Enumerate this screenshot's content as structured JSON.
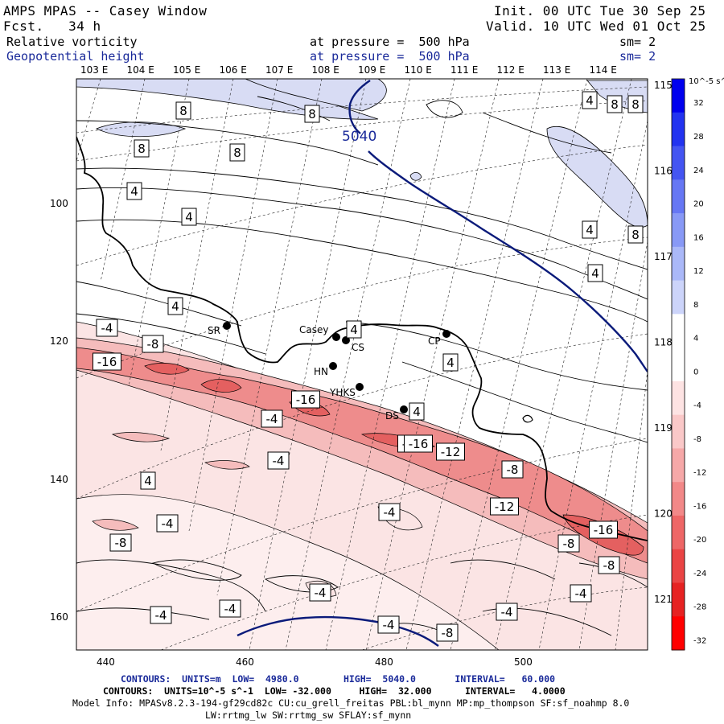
{
  "header": {
    "model": "AMPS MPAS -- Casey Window",
    "init": "Init. 00 UTC Tue 30 Sep 25",
    "fcst": "Fcst.   34 h",
    "valid": "Valid. 10 UTC Wed 01 Oct 25",
    "field1_name": "Relative vorticity",
    "field1_level": "at pressure =  500 hPa",
    "field1_sm": "sm= 2",
    "field2_name": "Geopotential height",
    "field2_level": "at pressure =  500 hPa",
    "field2_sm": "sm= 2"
  },
  "top_lon_labels": [
    "103 E",
    "104 E",
    "105 E",
    "106 E",
    "107 E",
    "108 E",
    "109 E",
    "110 E",
    "111 E",
    "112 E",
    "113 E",
    "114 E"
  ],
  "right_lat_labels": [
    "115 E",
    "116 E",
    "117 E",
    "118 E",
    "119 E",
    "120 E",
    "121 E"
  ],
  "x_ticks": [
    "440",
    "460",
    "480",
    "500"
  ],
  "y_ticks": [
    "100",
    "120",
    "140",
    "160"
  ],
  "stations": [
    {
      "name": "SR"
    },
    {
      "name": "Casey"
    },
    {
      "name": "CS"
    },
    {
      "name": "HN"
    },
    {
      "name": "YHKS"
    },
    {
      "name": "DS"
    },
    {
      "name": "CP"
    }
  ],
  "height_contour_label": "5040",
  "contour_labels": [
    "8",
    "8",
    "8",
    "8",
    "8",
    "8",
    "8",
    "4",
    "4",
    "4",
    "4",
    "4",
    "4",
    "4",
    "-4",
    "-8",
    "-16",
    "-16",
    "-16",
    "-4",
    "-16",
    "-12",
    "-4",
    "-8",
    "-4",
    "-4",
    "-8",
    "-12",
    "-16",
    "-8",
    "-8",
    "-4",
    "-4",
    "-4",
    "-4",
    "-4",
    "-8",
    "-4",
    "4",
    "4",
    "4",
    "4"
  ],
  "colorbar": {
    "unit": "10^-5 s^-1",
    "labels": [
      "32",
      "28",
      "24",
      "20",
      "16",
      "12",
      "8",
      "4",
      "0",
      "-4",
      "-8",
      "-12",
      "-16",
      "-20",
      "-24",
      "-28",
      "-32"
    ],
    "colors": [
      "#0000ee",
      "#2233f0",
      "#4455f2",
      "#6677f4",
      "#8899f6",
      "#aab8f8",
      "#ccd4fa",
      "#ffffff",
      "#ffffff",
      "#fde3e3",
      "#fac8c8",
      "#f6a8a8",
      "#f28888",
      "#ee6666",
      "#ea4444",
      "#e62222",
      "#ff0000"
    ]
  },
  "footer": {
    "line1": "CONTOURS:  UNITS=m  LOW=  4980.0        HIGH=  5040.0       INTERVAL=   60.000",
    "line2": "CONTOURS:  UNITS=10^-5 s^-1  LOW= -32.000     HIGH=  32.000      INTERVAL=   4.0000",
    "line3": "Model Info: MPASv8.2.3-194-gf29cd82c CU:cu_grell_freitas PBL:bl_mynn MP:mp_thompson SF:sf_noahmp 8.0",
    "line4": "LW:rrtmg_lw SW:rrtmg_sw SFLAY:sf_mynn"
  },
  "colors": {
    "height_line": "#0a1a7a",
    "coast": "#000000",
    "pos_fill": "#d8dcf4",
    "neg1": "#fbe4e4",
    "neg2": "#f5bcbc",
    "neg3": "#ee8c8c",
    "neg4": "#e46060"
  }
}
